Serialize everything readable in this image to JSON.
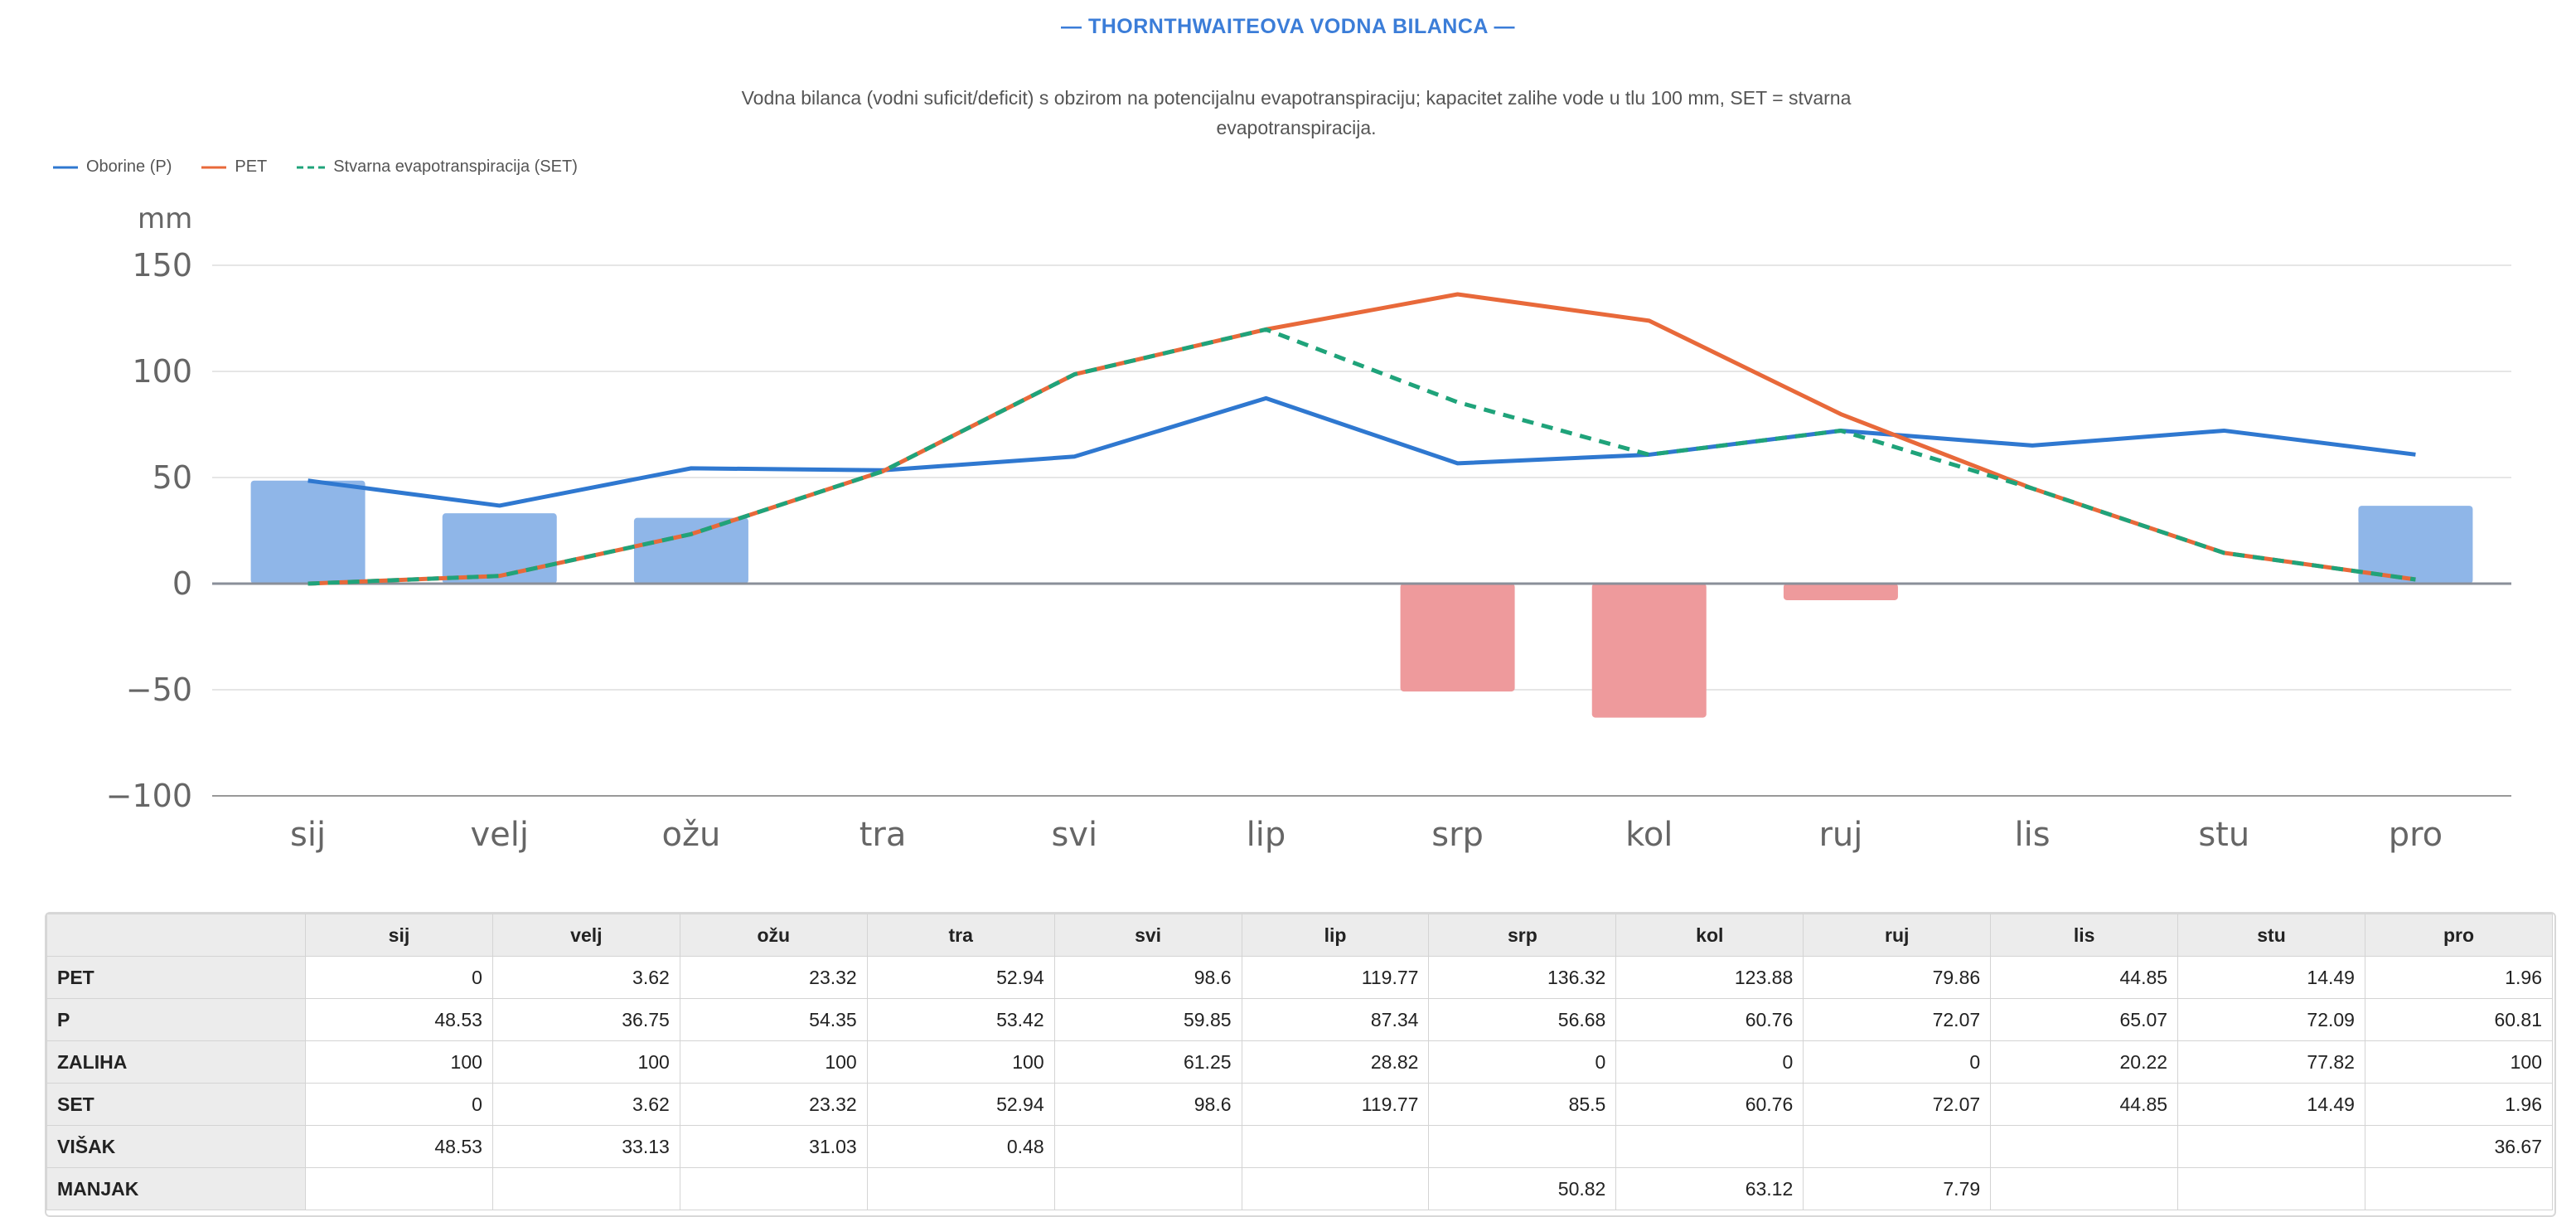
{
  "chart_data": {
    "type": "bar",
    "title": "— THORNTHWAITEOVA VODNA BILANCA —",
    "subtitle": "Vodna bilanca (vodni suficit/deficit) s obzirom na potencijalnu evapotranspiraciju; kapacitet zalihe vode u tlu 100 mm, SET = stvarna evapotranspiracija.",
    "ylabel": "mm",
    "xlabel": "",
    "ylim": [
      -100,
      150
    ],
    "yticks": [
      150,
      100,
      50,
      0,
      -50,
      -100
    ],
    "ytick_labels": [
      "150",
      "100",
      "50",
      "0",
      "−50",
      "−100"
    ],
    "grid": true,
    "legend_position": "top-left",
    "categories": [
      "sij",
      "velj",
      "ožu",
      "tra",
      "svi",
      "lip",
      "srp",
      "kol",
      "ruj",
      "lis",
      "stu",
      "pro"
    ],
    "bars": {
      "values": [
        48.53,
        33.13,
        31.03,
        0.48,
        0,
        0,
        -50.82,
        -63.12,
        -7.79,
        0,
        0,
        36.67
      ],
      "positive_color": "#8fb6e8",
      "negative_color": "#ee9a9c"
    },
    "series": [
      {
        "name": "Oborine (P)",
        "color": "#2f78d0",
        "dashed": false,
        "values": [
          48.53,
          36.75,
          54.35,
          53.42,
          59.85,
          87.34,
          56.68,
          60.76,
          72.07,
          65.07,
          72.09,
          60.81
        ]
      },
      {
        "name": "PET",
        "color": "#e8693a",
        "dashed": false,
        "values": [
          0,
          3.62,
          23.32,
          52.94,
          98.6,
          119.77,
          136.32,
          123.88,
          79.86,
          44.85,
          14.49,
          1.96
        ]
      },
      {
        "name": "Stvarna evapotranspiracija (SET)",
        "color": "#1fa37a",
        "dashed": true,
        "values": [
          0,
          3.62,
          23.32,
          52.94,
          98.6,
          119.77,
          85.5,
          60.76,
          72.07,
          44.85,
          14.49,
          1.96
        ]
      }
    ]
  },
  "table": {
    "columns": [
      "sij",
      "velj",
      "ožu",
      "tra",
      "svi",
      "lip",
      "srp",
      "kol",
      "ruj",
      "lis",
      "stu",
      "pro"
    ],
    "rows": [
      {
        "label": "PET",
        "cells": [
          "0",
          "3.62",
          "23.32",
          "52.94",
          "98.6",
          "119.77",
          "136.32",
          "123.88",
          "79.86",
          "44.85",
          "14.49",
          "1.96"
        ]
      },
      {
        "label": "P",
        "cells": [
          "48.53",
          "36.75",
          "54.35",
          "53.42",
          "59.85",
          "87.34",
          "56.68",
          "60.76",
          "72.07",
          "65.07",
          "72.09",
          "60.81"
        ]
      },
      {
        "label": "ZALIHA",
        "cells": [
          "100",
          "100",
          "100",
          "100",
          "61.25",
          "28.82",
          "0",
          "0",
          "0",
          "20.22",
          "77.82",
          "100"
        ]
      },
      {
        "label": "SET",
        "cells": [
          "0",
          "3.62",
          "23.32",
          "52.94",
          "98.6",
          "119.77",
          "85.5",
          "60.76",
          "72.07",
          "44.85",
          "14.49",
          "1.96"
        ]
      },
      {
        "label": "VIŠAK",
        "cells": [
          "48.53",
          "33.13",
          "31.03",
          "0.48",
          "",
          "",
          "",
          "",
          "",
          "",
          "",
          "36.67"
        ]
      },
      {
        "label": "MANJAK",
        "cells": [
          "",
          "",
          "",
          "",
          "",
          "",
          "50.82",
          "63.12",
          "7.79",
          "",
          "",
          ""
        ]
      }
    ]
  }
}
